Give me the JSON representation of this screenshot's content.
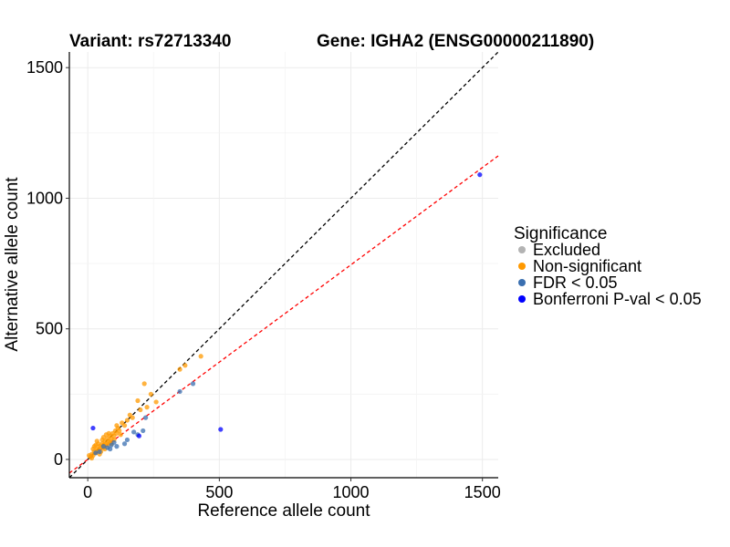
{
  "chart_data": {
    "type": "scatter",
    "title_left": "Variant: rs72713340",
    "title_right": "Gene: IGHA2 (ENSG00000211890)",
    "xlabel": "Reference allele count",
    "ylabel": "Alternative allele count",
    "xlim": [
      -70,
      1560
    ],
    "ylim": [
      -70,
      1560
    ],
    "xticks": [
      0,
      500,
      1000,
      1500
    ],
    "yticks": [
      0,
      500,
      1000,
      1500
    ],
    "grid": true,
    "reference_lines": [
      {
        "name": "identity",
        "slope": 1.0,
        "intercept": 0,
        "color": "#000000",
        "style": "dashed"
      },
      {
        "name": "fit",
        "slope": 0.745,
        "intercept": 0,
        "color": "#ff0000",
        "style": "dashed"
      }
    ],
    "legend": {
      "title": "Significance",
      "position": "right",
      "entries": [
        {
          "label": "Excluded",
          "color": "#b3b3b3"
        },
        {
          "label": "Non-significant",
          "color": "#ff9900"
        },
        {
          "label": "FDR < 0.05",
          "color": "#3a6fb0"
        },
        {
          "label": "Bonferroni P-val < 0.05",
          "color": "#0000ff"
        }
      ]
    },
    "series": [
      {
        "name": "Non-significant",
        "color": "#ff9900",
        "points": [
          [
            10,
            10
          ],
          [
            15,
            20
          ],
          [
            20,
            15
          ],
          [
            25,
            30
          ],
          [
            30,
            25
          ],
          [
            35,
            40
          ],
          [
            40,
            35
          ],
          [
            45,
            50
          ],
          [
            50,
            45
          ],
          [
            55,
            60
          ],
          [
            60,
            55
          ],
          [
            65,
            70
          ],
          [
            70,
            60
          ],
          [
            75,
            80
          ],
          [
            80,
            70
          ],
          [
            85,
            90
          ],
          [
            90,
            80
          ],
          [
            95,
            100
          ],
          [
            100,
            90
          ],
          [
            105,
            110
          ],
          [
            110,
            100
          ],
          [
            115,
            120
          ],
          [
            120,
            110
          ],
          [
            130,
            140
          ],
          [
            140,
            130
          ],
          [
            150,
            150
          ],
          [
            160,
            170
          ],
          [
            170,
            160
          ],
          [
            190,
            225
          ],
          [
            200,
            190
          ],
          [
            215,
            290
          ],
          [
            225,
            200
          ],
          [
            240,
            250
          ],
          [
            260,
            220
          ],
          [
            350,
            345
          ],
          [
            370,
            360
          ],
          [
            430,
            395
          ],
          [
            30,
            55
          ],
          [
            40,
            60
          ],
          [
            60,
            45
          ],
          [
            50,
            30
          ],
          [
            70,
            95
          ],
          [
            90,
            60
          ],
          [
            110,
            130
          ],
          [
            20,
            40
          ],
          [
            15,
            5
          ],
          [
            5,
            15
          ],
          [
            45,
            20
          ],
          [
            35,
            70
          ],
          [
            25,
            50
          ],
          [
            60,
            85
          ],
          [
            80,
            100
          ],
          [
            100,
            75
          ],
          [
            125,
            95
          ],
          [
            65,
            40
          ],
          [
            55,
            75
          ],
          [
            75,
            55
          ],
          [
            85,
            65
          ]
        ]
      },
      {
        "name": "FDR < 0.05",
        "color": "#3a6fb0",
        "points": [
          [
            30,
            25
          ],
          [
            45,
            30
          ],
          [
            60,
            50
          ],
          [
            75,
            45
          ],
          [
            85,
            40
          ],
          [
            90,
            55
          ],
          [
            100,
            65
          ],
          [
            110,
            50
          ],
          [
            140,
            60
          ],
          [
            150,
            75
          ],
          [
            175,
            105
          ],
          [
            190,
            95
          ],
          [
            210,
            110
          ],
          [
            220,
            160
          ],
          [
            350,
            260
          ],
          [
            400,
            290
          ]
        ]
      },
      {
        "name": "Bonferroni P-val < 0.05",
        "color": "#0000ff",
        "points": [
          [
            20,
            120
          ],
          [
            195,
            90
          ],
          [
            505,
            115
          ],
          [
            1490,
            1090
          ]
        ]
      }
    ]
  }
}
